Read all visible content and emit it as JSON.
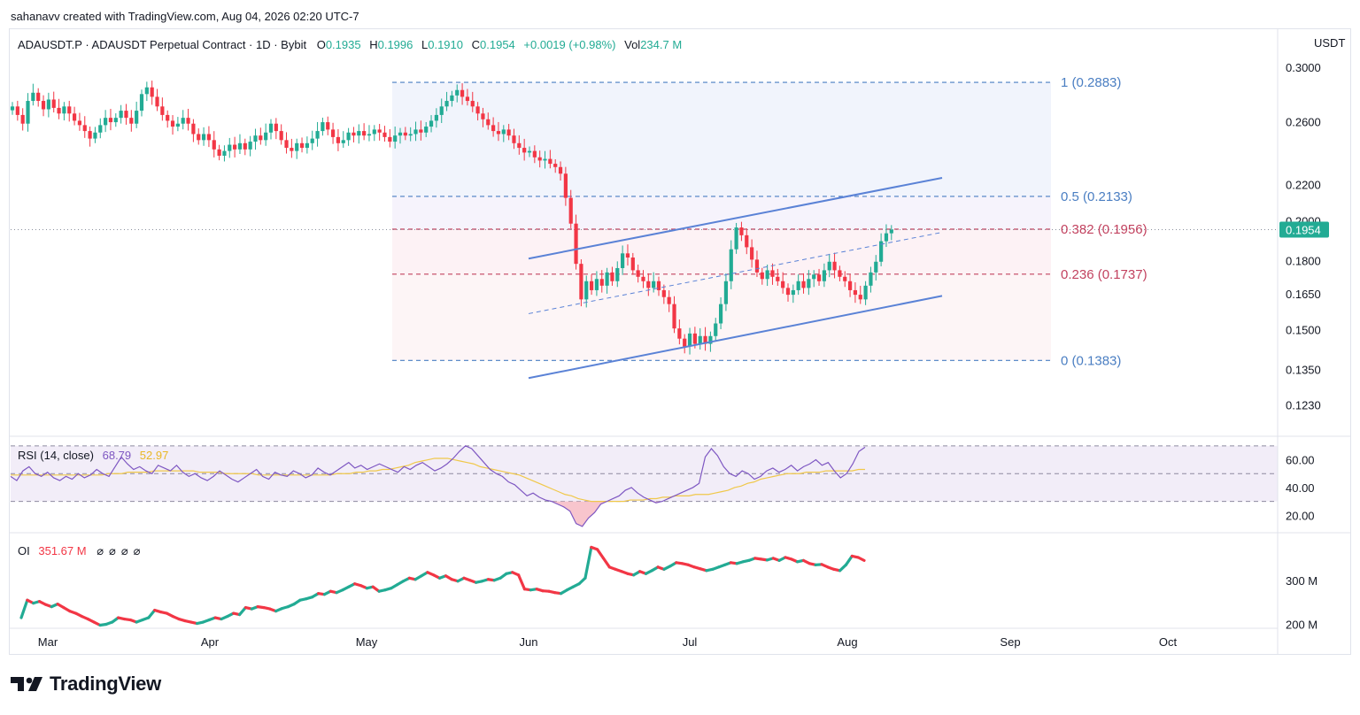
{
  "credit": "sahanavv created with TradingView.com, Aug 04, 2026 02:20 UTC-7",
  "symbol": {
    "name": "ADAUSDT.P · ADAUSDT Perpetual Contract · 1D · Bybit",
    "o_label": "O",
    "o": "0.1935",
    "h_label": "H",
    "h": "0.1996",
    "l_label": "L",
    "l": "0.1910",
    "c_label": "C",
    "c": "0.1954",
    "change": "+0.0019 (+0.98%)",
    "vol_label": "Vol",
    "vol": "234.7 M"
  },
  "currency": "USDT",
  "colors": {
    "up": "#22ab94",
    "down": "#f23645",
    "fib_blue": "#4a7ec2",
    "fib_red": "#c2425f",
    "channel": "#5a82d6",
    "rsi": "#7e57c2",
    "rsi_ma": "#f0c84a",
    "last_price": "#22ab94"
  },
  "logo": {
    "text": "TradingView",
    "icon": "tradingview-logo-icon"
  },
  "chart_data": [
    {
      "type": "candlestick",
      "pane": "price",
      "y_scale": "log",
      "ylim": [
        0.114,
        0.31
      ],
      "ticks": [
        "0.3000",
        "0.2600",
        "0.2200",
        "0.2000",
        "0.1800",
        "0.1650",
        "0.1500",
        "0.1350",
        "0.1230"
      ],
      "x_labels": [
        "Mar",
        "Apr",
        "May",
        "Jun",
        "Jul",
        "Aug",
        "Sep",
        "Oct"
      ],
      "last_price": "0.1954",
      "closes": [
        0.2705,
        0.2645,
        0.2585,
        0.2745,
        0.2805,
        0.2745,
        0.2685,
        0.2755,
        0.2695,
        0.2655,
        0.2705,
        0.2655,
        0.2605,
        0.2575,
        0.2535,
        0.2485,
        0.2525,
        0.2575,
        0.2625,
        0.2595,
        0.2625,
        0.2675,
        0.2625,
        0.2585,
        0.2675,
        0.2795,
        0.2845,
        0.2775,
        0.2705,
        0.2645,
        0.2605,
        0.2565,
        0.2585,
        0.2625,
        0.2585,
        0.2515,
        0.2475,
        0.2515,
        0.2475,
        0.2415,
        0.2375,
        0.2405,
        0.2445,
        0.2415,
        0.2455,
        0.2415,
        0.2465,
        0.2505,
        0.2475,
        0.2525,
        0.2585,
        0.2535,
        0.2475,
        0.2425,
        0.2405,
        0.2455,
        0.2425,
        0.2455,
        0.2485,
        0.2535,
        0.2595,
        0.2545,
        0.2495,
        0.2455,
        0.2475,
        0.2525,
        0.2505,
        0.2535,
        0.2505,
        0.2515,
        0.2545,
        0.2525,
        0.2495,
        0.2465,
        0.2505,
        0.2525,
        0.2505,
        0.2515,
        0.2545,
        0.2525,
        0.2565,
        0.2605,
        0.2645,
        0.2705,
        0.2745,
        0.2785,
        0.2825,
        0.2775,
        0.2745,
        0.2705,
        0.2655,
        0.2615,
        0.2575,
        0.2535,
        0.2515,
        0.2545,
        0.2505,
        0.2455,
        0.2425,
        0.2395,
        0.2405,
        0.2365,
        0.2345,
        0.2355,
        0.2325,
        0.2305,
        0.2265,
        0.2125,
        0.1985,
        0.1785,
        0.1625,
        0.1705,
        0.1665,
        0.1715,
        0.1685,
        0.1745,
        0.1705,
        0.1765,
        0.1835,
        0.1815,
        0.1755,
        0.1725,
        0.1705,
        0.1675,
        0.1705,
        0.1665,
        0.1635,
        0.1605,
        0.1505,
        0.1465,
        0.1435,
        0.1485,
        0.1445,
        0.1475,
        0.1445,
        0.1475,
        0.1525,
        0.1605,
        0.1705,
        0.1855,
        0.1965,
        0.1925,
        0.1865,
        0.1805,
        0.1745,
        0.1715,
        0.1755,
        0.1725,
        0.1705,
        0.1675,
        0.1645,
        0.1665,
        0.1705,
        0.1675,
        0.1715,
        0.1735,
        0.1705,
        0.1755,
        0.1795,
        0.1755,
        0.1725,
        0.1705,
        0.1665,
        0.1645,
        0.1625,
        0.1685,
        0.1745,
        0.1795,
        0.1895,
        0.1935,
        0.1954
      ],
      "fib_levels": [
        {
          "label": "1 (0.2883)",
          "value": 0.2883,
          "color": "#4a7ec2"
        },
        {
          "label": "0.5 (0.2133)",
          "value": 0.2133,
          "color": "#4a7ec2"
        },
        {
          "label": "0.382 (0.1956)",
          "value": 0.1956,
          "color": "#c2425f"
        },
        {
          "label": "0.236 (0.1737)",
          "value": 0.1737,
          "color": "#c2425f"
        },
        {
          "label": "0 (0.1383)",
          "value": 0.1383,
          "color": "#4a7ec2"
        }
      ]
    },
    {
      "type": "line",
      "pane": "rsi",
      "name": "RSI (14, close)",
      "value": "68.79",
      "ma_value": "52.97",
      "ylim": [
        10,
        75
      ],
      "ticks": [
        "60.00",
        "40.00",
        "20.00"
      ],
      "bands": [
        70,
        50,
        30
      ],
      "rsi": [
        48,
        45,
        52,
        55,
        50,
        48,
        51,
        47,
        45,
        48,
        46,
        50,
        47,
        49,
        53,
        50,
        48,
        55,
        62,
        57,
        53,
        55,
        52,
        50,
        56,
        54,
        52,
        56,
        51,
        48,
        50,
        47,
        45,
        48,
        52,
        49,
        46,
        44,
        47,
        50,
        53,
        48,
        46,
        51,
        49,
        48,
        52,
        50,
        47,
        49,
        54,
        51,
        49,
        52,
        55,
        58,
        54,
        56,
        53,
        55,
        57,
        55,
        53,
        51,
        55,
        53,
        56,
        58,
        55,
        52,
        54,
        57,
        61,
        66,
        70,
        68,
        63,
        58,
        53,
        50,
        48,
        44,
        42,
        38,
        34,
        36,
        33,
        31,
        30,
        28,
        26,
        23,
        14,
        12,
        18,
        22,
        28,
        30,
        32,
        34,
        38,
        40,
        36,
        33,
        31,
        29,
        30,
        32,
        34,
        36,
        38,
        40,
        43,
        62,
        68,
        63,
        55,
        50,
        48,
        52,
        50,
        46,
        48,
        52,
        54,
        51,
        53,
        56,
        52,
        55,
        57,
        60,
        56,
        58,
        52,
        47,
        50,
        57,
        66,
        69
      ],
      "rsi_ma": [
        49,
        49,
        49,
        49,
        49,
        49,
        49,
        49,
        49,
        49,
        49,
        49,
        49,
        49,
        49,
        50,
        50,
        50,
        51,
        51,
        51,
        51,
        52,
        52,
        52,
        52,
        52,
        52,
        52,
        51,
        51,
        51,
        51,
        50,
        50,
        50,
        50,
        50,
        49,
        49,
        49,
        49,
        49,
        49,
        49,
        49,
        49,
        49,
        49,
        49,
        50,
        50,
        50,
        51,
        51,
        52,
        52,
        53,
        53,
        54,
        55,
        56,
        58,
        59,
        60,
        61,
        61,
        61,
        60,
        59,
        58,
        57,
        55,
        54,
        53,
        52,
        51,
        50,
        49,
        47,
        45,
        43,
        41,
        39,
        37,
        35,
        34,
        32,
        31,
        30,
        30,
        30,
        30,
        30,
        30,
        31,
        31,
        31,
        32,
        32,
        33,
        33,
        34,
        34,
        34,
        35,
        35,
        35,
        36,
        37,
        38,
        40,
        41,
        43,
        44,
        46,
        47,
        48,
        49,
        50,
        50,
        50,
        51,
        51,
        51,
        52,
        52,
        52,
        52,
        52,
        53,
        53
      ]
    },
    {
      "type": "line",
      "pane": "oi",
      "name": "OI",
      "value": "351.67 M",
      "unit": "M",
      "ylim": [
        195,
        400
      ],
      "ticks": [
        "300 M",
        "200 M"
      ],
      "oi": [
        215,
        255,
        248,
        252,
        245,
        240,
        246,
        238,
        230,
        225,
        218,
        212,
        205,
        198,
        200,
        205,
        215,
        212,
        210,
        205,
        210,
        215,
        232,
        228,
        225,
        218,
        212,
        208,
        205,
        202,
        205,
        210,
        215,
        212,
        218,
        225,
        222,
        238,
        235,
        240,
        238,
        235,
        230,
        236,
        240,
        246,
        255,
        258,
        262,
        270,
        268,
        275,
        272,
        278,
        285,
        292,
        288,
        282,
        285,
        275,
        278,
        282,
        290,
        298,
        305,
        302,
        310,
        318,
        312,
        305,
        310,
        302,
        298,
        305,
        300,
        295,
        298,
        302,
        300,
        305,
        315,
        318,
        312,
        280,
        278,
        280,
        276,
        275,
        272,
        270,
        278,
        285,
        292,
        305,
        375,
        370,
        350,
        330,
        325,
        320,
        315,
        312,
        320,
        315,
        322,
        330,
        325,
        332,
        340,
        338,
        335,
        330,
        326,
        322,
        325,
        330,
        335,
        340,
        338,
        342,
        345,
        350,
        348,
        346,
        350,
        345,
        352,
        348,
        342,
        345,
        338,
        335,
        336,
        330,
        325,
        322,
        335,
        355,
        352,
        345
      ]
    }
  ]
}
